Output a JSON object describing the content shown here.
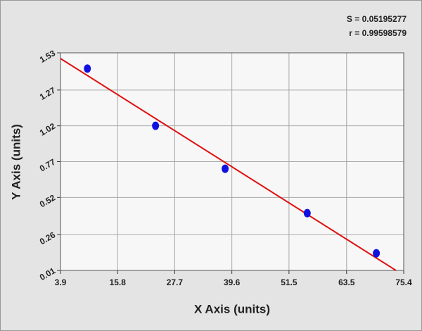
{
  "chart_data": {
    "type": "scatter",
    "xlabel": "X Axis (units)",
    "ylabel": "Y Axis (units)",
    "annotations": [
      "S = 0.05195277",
      "r = 0.99598579"
    ],
    "x": [
      9.5,
      23.7,
      38.2,
      55.3,
      69.7
    ],
    "values": [
      1.42,
      1.02,
      0.72,
      0.41,
      0.13
    ],
    "color": "#1010e0",
    "fit": {
      "x": [
        3.9,
        73.8
      ],
      "values": [
        1.49,
        0.01
      ],
      "color": "#e01010"
    },
    "xlim": [
      3.9,
      75.4
    ],
    "xticks": [
      3.9,
      15.8,
      27.7,
      39.6,
      51.5,
      63.5,
      75.4
    ],
    "ylim": [
      0.01,
      1.53
    ],
    "yticks": [
      0.01,
      0.26,
      0.52,
      0.77,
      1.02,
      1.27,
      1.53
    ],
    "grid": true
  }
}
